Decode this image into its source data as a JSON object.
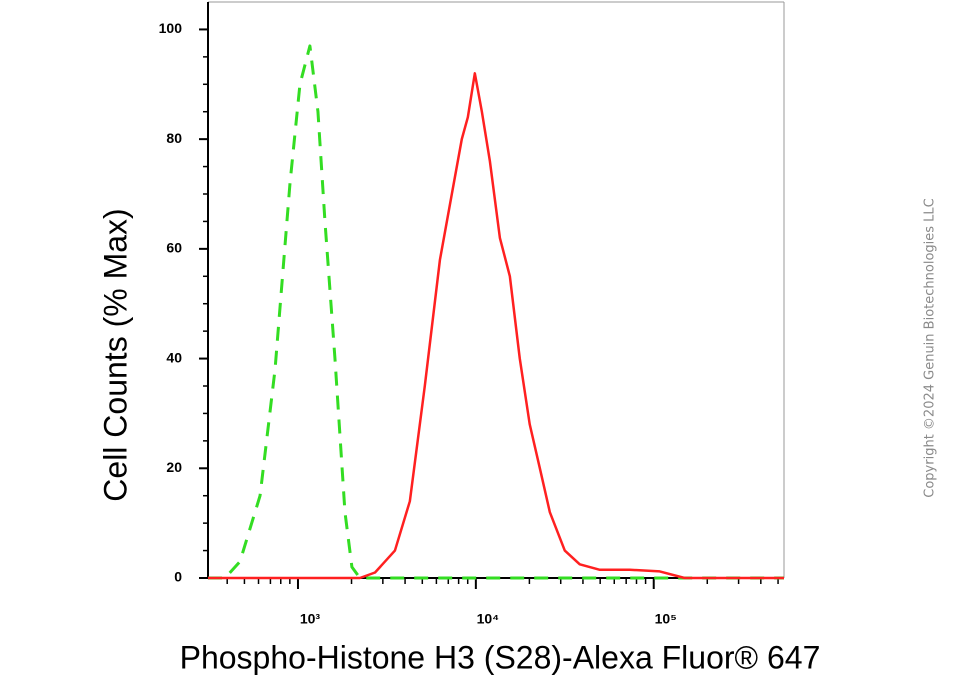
{
  "chart_data": {
    "type": "line",
    "x_label": "Phospho-Histone H3 (S28)-Alexa Fluor® 647",
    "y_label": "Cell Counts (% Max)",
    "copyright": "Copyright ©2024 Genuin Biotechnologies LLC",
    "xscale": "log",
    "xlim": [
      312,
      540000
    ],
    "ylim": [
      0,
      105
    ],
    "xticks": [
      {
        "value": 1000,
        "label": "10³"
      },
      {
        "value": 10000,
        "label": "10⁴"
      },
      {
        "value": 100000,
        "label": "10⁵"
      }
    ],
    "xminorticks": [
      400,
      500,
      600,
      700,
      800,
      900,
      2000,
      3000,
      4000,
      5000,
      6000,
      7000,
      8000,
      9000,
      20000,
      30000,
      40000,
      50000,
      60000,
      70000,
      80000,
      90000,
      200000,
      300000,
      400000,
      500000
    ],
    "yticks": [
      0,
      20,
      40,
      60,
      80,
      100
    ],
    "yminorticks": [
      5,
      10,
      15,
      25,
      30,
      35,
      45,
      50,
      55,
      65,
      70,
      75,
      85,
      90,
      95
    ],
    "series": [
      {
        "color": "#33dd22",
        "dash": true,
        "x": [
          312,
          389,
          472,
          612,
          743,
          902,
          1026,
          1167,
          1295,
          1418,
          1614,
          1837,
          2010,
          2230,
          13650,
          540000
        ],
        "values": [
          0,
          0,
          3,
          15,
          38,
          72,
          90,
          97,
          85,
          65,
          40,
          12,
          2,
          0,
          0,
          0
        ]
      },
      {
        "color": "#ff2020",
        "dash": false,
        "x": [
          312,
          2230,
          2712,
          3508,
          4256,
          5164,
          6281,
          7328,
          8337,
          9016,
          9869,
          10810,
          11990,
          13650,
          15530,
          17660,
          20090,
          22900,
          26060,
          31620,
          38370,
          49770,
          73300,
          108100,
          149300,
          540000
        ],
        "values": [
          0,
          0,
          1,
          5,
          14,
          35,
          58,
          70,
          80,
          84,
          92,
          85,
          76,
          62,
          55,
          40,
          28,
          20,
          12,
          5,
          2.5,
          1.5,
          1.5,
          1.2,
          0,
          0
        ]
      }
    ]
  }
}
